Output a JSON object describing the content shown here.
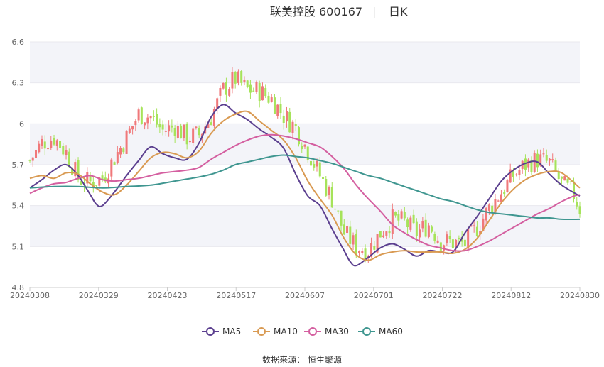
{
  "header": {
    "title": "联美控股 600167",
    "period": "日K"
  },
  "source": "数据来源： 恒生聚源",
  "chart_data": {
    "type": "candlestick",
    "title": "联美控股 600167",
    "period": "日K",
    "ylim": [
      4.8,
      6.6
    ],
    "y_ticks": [
      4.8,
      5.1,
      5.4,
      5.7,
      6,
      6.3,
      6.6
    ],
    "x_ticks": [
      "20240308",
      "20240329",
      "20240423",
      "20240517",
      "20240607",
      "20240701",
      "20240722",
      "20240812",
      "20240830"
    ],
    "grid": true,
    "legend_position": "bottom",
    "colors": {
      "up": "#f0787a",
      "down": "#a6e35a",
      "ma5": "#5b3f8f",
      "ma10": "#d99a52",
      "ma30": "#d45fa0",
      "ma60": "#3f9690"
    },
    "candle_keypoints": [
      [
        0,
        5.73
      ],
      [
        4,
        5.86
      ],
      [
        8,
        5.9
      ],
      [
        12,
        5.79
      ],
      [
        16,
        5.6
      ],
      [
        20,
        5.57
      ],
      [
        24,
        5.6
      ],
      [
        28,
        5.75
      ],
      [
        32,
        5.9
      ],
      [
        36,
        6.07
      ],
      [
        40,
        6.05
      ],
      [
        44,
        5.95
      ],
      [
        48,
        5.98
      ],
      [
        52,
        5.9
      ],
      [
        56,
        5.92
      ],
      [
        60,
        6.05
      ],
      [
        64,
        6.25
      ],
      [
        68,
        6.33
      ],
      [
        72,
        6.25
      ],
      [
        76,
        6.24
      ],
      [
        80,
        6.18
      ],
      [
        84,
        6.06
      ],
      [
        88,
        5.97
      ],
      [
        92,
        5.8
      ],
      [
        96,
        5.62
      ],
      [
        100,
        5.45
      ],
      [
        104,
        5.2
      ],
      [
        108,
        5.1
      ],
      [
        112,
        5.07
      ],
      [
        116,
        5.2
      ],
      [
        120,
        5.3
      ],
      [
        124,
        5.28
      ],
      [
        128,
        5.2
      ],
      [
        132,
        5.26
      ],
      [
        136,
        5.14
      ],
      [
        140,
        5.13
      ],
      [
        144,
        5.12
      ],
      [
        148,
        5.24
      ],
      [
        152,
        5.38
      ],
      [
        156,
        5.5
      ],
      [
        160,
        5.62
      ],
      [
        164,
        5.7
      ],
      [
        168,
        5.74
      ],
      [
        172,
        5.71
      ],
      [
        176,
        5.56
      ],
      [
        180,
        5.48
      ],
      [
        182,
        5.38
      ]
    ],
    "series": [
      {
        "name": "MA5",
        "points": [
          [
            0,
            5.53
          ],
          [
            4,
            5.59
          ],
          [
            8,
            5.66
          ],
          [
            12,
            5.7
          ],
          [
            16,
            5.62
          ],
          [
            20,
            5.48
          ],
          [
            22,
            5.41
          ],
          [
            24,
            5.4
          ],
          [
            28,
            5.5
          ],
          [
            32,
            5.62
          ],
          [
            36,
            5.73
          ],
          [
            40,
            5.83
          ],
          [
            44,
            5.78
          ],
          [
            48,
            5.75
          ],
          [
            52,
            5.74
          ],
          [
            56,
            5.86
          ],
          [
            60,
            6.05
          ],
          [
            64,
            6.14
          ],
          [
            68,
            6.08
          ],
          [
            72,
            6.03
          ],
          [
            76,
            5.96
          ],
          [
            80,
            5.9
          ],
          [
            84,
            5.82
          ],
          [
            88,
            5.63
          ],
          [
            92,
            5.47
          ],
          [
            96,
            5.4
          ],
          [
            100,
            5.23
          ],
          [
            104,
            5.07
          ],
          [
            106,
            4.99
          ],
          [
            108,
            4.96
          ],
          [
            112,
            5.02
          ],
          [
            116,
            5.09
          ],
          [
            120,
            5.12
          ],
          [
            124,
            5.08
          ],
          [
            128,
            5.03
          ],
          [
            132,
            5.07
          ],
          [
            136,
            5.06
          ],
          [
            140,
            5.06
          ],
          [
            144,
            5.2
          ],
          [
            148,
            5.32
          ],
          [
            152,
            5.45
          ],
          [
            156,
            5.58
          ],
          [
            160,
            5.66
          ],
          [
            164,
            5.71
          ],
          [
            168,
            5.72
          ],
          [
            172,
            5.63
          ],
          [
            176,
            5.55
          ],
          [
            182,
            5.47
          ]
        ]
      },
      {
        "name": "MA10",
        "points": [
          [
            0,
            5.6
          ],
          [
            4,
            5.62
          ],
          [
            8,
            5.6
          ],
          [
            12,
            5.64
          ],
          [
            16,
            5.63
          ],
          [
            20,
            5.56
          ],
          [
            24,
            5.5
          ],
          [
            28,
            5.48
          ],
          [
            32,
            5.55
          ],
          [
            36,
            5.65
          ],
          [
            40,
            5.75
          ],
          [
            44,
            5.79
          ],
          [
            48,
            5.78
          ],
          [
            52,
            5.75
          ],
          [
            56,
            5.8
          ],
          [
            60,
            5.93
          ],
          [
            64,
            6.02
          ],
          [
            68,
            6.07
          ],
          [
            72,
            6.09
          ],
          [
            76,
            6.02
          ],
          [
            80,
            5.95
          ],
          [
            84,
            5.88
          ],
          [
            88,
            5.75
          ],
          [
            92,
            5.58
          ],
          [
            96,
            5.45
          ],
          [
            100,
            5.33
          ],
          [
            104,
            5.16
          ],
          [
            108,
            5.04
          ],
          [
            112,
            5.0
          ],
          [
            116,
            5.04
          ],
          [
            120,
            5.06
          ],
          [
            124,
            5.07
          ],
          [
            128,
            5.06
          ],
          [
            132,
            5.06
          ],
          [
            136,
            5.06
          ],
          [
            140,
            5.05
          ],
          [
            144,
            5.08
          ],
          [
            148,
            5.16
          ],
          [
            152,
            5.29
          ],
          [
            156,
            5.42
          ],
          [
            160,
            5.52
          ],
          [
            164,
            5.59
          ],
          [
            168,
            5.63
          ],
          [
            172,
            5.65
          ],
          [
            176,
            5.64
          ],
          [
            182,
            5.53
          ]
        ]
      },
      {
        "name": "MA30",
        "points": [
          [
            0,
            5.49
          ],
          [
            4,
            5.53
          ],
          [
            8,
            5.56
          ],
          [
            12,
            5.57
          ],
          [
            16,
            5.6
          ],
          [
            20,
            5.62
          ],
          [
            24,
            5.59
          ],
          [
            28,
            5.58
          ],
          [
            32,
            5.59
          ],
          [
            36,
            5.6
          ],
          [
            40,
            5.62
          ],
          [
            44,
            5.64
          ],
          [
            48,
            5.65
          ],
          [
            52,
            5.66
          ],
          [
            56,
            5.68
          ],
          [
            60,
            5.74
          ],
          [
            64,
            5.79
          ],
          [
            68,
            5.84
          ],
          [
            72,
            5.88
          ],
          [
            76,
            5.91
          ],
          [
            80,
            5.92
          ],
          [
            84,
            5.91
          ],
          [
            88,
            5.89
          ],
          [
            92,
            5.86
          ],
          [
            96,
            5.83
          ],
          [
            100,
            5.76
          ],
          [
            104,
            5.67
          ],
          [
            108,
            5.55
          ],
          [
            112,
            5.45
          ],
          [
            116,
            5.36
          ],
          [
            120,
            5.26
          ],
          [
            124,
            5.2
          ],
          [
            128,
            5.15
          ],
          [
            132,
            5.11
          ],
          [
            136,
            5.09
          ],
          [
            140,
            5.07
          ],
          [
            144,
            5.07
          ],
          [
            148,
            5.1
          ],
          [
            152,
            5.14
          ],
          [
            156,
            5.19
          ],
          [
            160,
            5.24
          ],
          [
            164,
            5.29
          ],
          [
            168,
            5.34
          ],
          [
            172,
            5.38
          ],
          [
            176,
            5.43
          ],
          [
            180,
            5.47
          ],
          [
            182,
            5.48
          ]
        ]
      },
      {
        "name": "MA60",
        "points": [
          [
            0,
            5.53
          ],
          [
            8,
            5.54
          ],
          [
            16,
            5.54
          ],
          [
            24,
            5.53
          ],
          [
            32,
            5.54
          ],
          [
            40,
            5.55
          ],
          [
            48,
            5.58
          ],
          [
            56,
            5.61
          ],
          [
            60,
            5.63
          ],
          [
            64,
            5.66
          ],
          [
            68,
            5.7
          ],
          [
            72,
            5.72
          ],
          [
            76,
            5.74
          ],
          [
            80,
            5.76
          ],
          [
            84,
            5.77
          ],
          [
            88,
            5.76
          ],
          [
            92,
            5.75
          ],
          [
            96,
            5.73
          ],
          [
            100,
            5.71
          ],
          [
            104,
            5.68
          ],
          [
            108,
            5.65
          ],
          [
            112,
            5.62
          ],
          [
            116,
            5.6
          ],
          [
            120,
            5.57
          ],
          [
            124,
            5.54
          ],
          [
            128,
            5.51
          ],
          [
            132,
            5.48
          ],
          [
            136,
            5.45
          ],
          [
            140,
            5.43
          ],
          [
            144,
            5.4
          ],
          [
            148,
            5.37
          ],
          [
            152,
            5.35
          ],
          [
            156,
            5.34
          ],
          [
            160,
            5.33
          ],
          [
            164,
            5.32
          ],
          [
            168,
            5.31
          ],
          [
            172,
            5.31
          ],
          [
            176,
            5.3
          ],
          [
            182,
            5.3
          ]
        ]
      }
    ]
  }
}
